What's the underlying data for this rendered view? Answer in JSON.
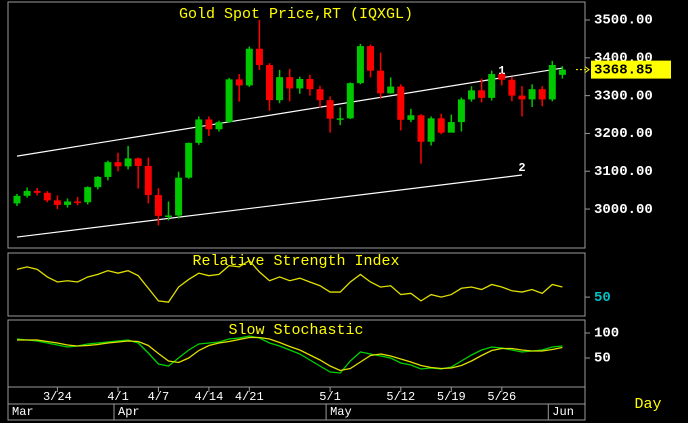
{
  "chart_data": [
    {
      "type": "candlestick",
      "title": "Gold Spot Price,RT (IQXGL)",
      "period": "Day",
      "x": [
        "3/18",
        "3/19",
        "3/20",
        "3/21",
        "3/24",
        "3/25",
        "3/26",
        "3/27",
        "3/28",
        "3/31",
        "4/1",
        "4/2",
        "4/3",
        "4/4",
        "4/7",
        "4/8",
        "4/9",
        "4/10",
        "4/11",
        "4/14",
        "4/15",
        "4/16",
        "4/17",
        "4/21",
        "4/22",
        "4/23",
        "4/24",
        "4/25",
        "4/28",
        "4/29",
        "4/30",
        "5/1",
        "5/2",
        "5/5",
        "5/6",
        "5/7",
        "5/8",
        "5/9",
        "5/12",
        "5/13",
        "5/14",
        "5/15",
        "5/16",
        "5/19",
        "5/20",
        "5/21",
        "5/22",
        "5/23",
        "5/26",
        "5/27",
        "5/28",
        "5/29",
        "5/30",
        "6/2",
        "6/3"
      ],
      "open": [
        3015,
        3035,
        3048,
        3043,
        3023,
        3011,
        3020,
        3018,
        3058,
        3085,
        3124,
        3113,
        3134,
        3114,
        3037,
        2982,
        2983,
        3083,
        3175,
        3237,
        3211,
        3230,
        3343,
        3327,
        3424,
        3381,
        3288,
        3349,
        3319,
        3344,
        3317,
        3288,
        3239,
        3240,
        3333,
        3431,
        3366,
        3306,
        3324,
        3236,
        3248,
        3178,
        3240,
        3202,
        3230,
        3290,
        3314,
        3294,
        3357,
        3342,
        3300,
        3290,
        3317,
        3290,
        3355
      ],
      "high": [
        3040,
        3057,
        3056,
        3047,
        3036,
        3028,
        3032,
        3060,
        3087,
        3128,
        3149,
        3167,
        3136,
        3136,
        3055,
        3020,
        3099,
        3176,
        3245,
        3245,
        3234,
        3347,
        3357,
        3430,
        3500,
        3386,
        3368,
        3371,
        3350,
        3355,
        3326,
        3298,
        3269,
        3335,
        3437,
        3435,
        3414,
        3348,
        3330,
        3265,
        3251,
        3245,
        3252,
        3250,
        3295,
        3325,
        3345,
        3366,
        3360,
        3350,
        3325,
        3330,
        3325,
        3392,
        3378
      ],
      "low": [
        3008,
        3030,
        3036,
        3018,
        3000,
        3004,
        3010,
        3012,
        3052,
        3076,
        3100,
        3105,
        3054,
        3015,
        2957,
        2970,
        2975,
        3080,
        3170,
        3193,
        3205,
        3228,
        3284,
        3323,
        3368,
        3260,
        3280,
        3285,
        3305,
        3300,
        3268,
        3202,
        3222,
        3238,
        3330,
        3348,
        3292,
        3305,
        3208,
        3230,
        3120,
        3168,
        3198,
        3205,
        3205,
        3284,
        3282,
        3287,
        3327,
        3285,
        3245,
        3270,
        3272,
        3285,
        3345
      ],
      "close": [
        3035,
        3048,
        3043,
        3023,
        3011,
        3020,
        3018,
        3058,
        3085,
        3124,
        3113,
        3134,
        3114,
        3037,
        2982,
        2983,
        3083,
        3175,
        3237,
        3211,
        3230,
        3343,
        3327,
        3424,
        3381,
        3288,
        3349,
        3319,
        3344,
        3317,
        3288,
        3239,
        3240,
        3333,
        3431,
        3366,
        3306,
        3324,
        3236,
        3248,
        3178,
        3240,
        3202,
        3230,
        3290,
        3314,
        3294,
        3357,
        3342,
        3300,
        3290,
        3317,
        3290,
        3381,
        3368.85
      ],
      "up_color": "#00c800",
      "down_color": "#ff0000",
      "ylim": [
        2897,
        3545
      ],
      "yticks": [
        {
          "value": 3000,
          "label": "3000.00"
        },
        {
          "value": 3100,
          "label": "3100.00"
        },
        {
          "value": 3200,
          "label": "3200.00"
        },
        {
          "value": 3300,
          "label": "3300.00"
        },
        {
          "value": 3400,
          "label": "3400.00"
        },
        {
          "value": 3500,
          "label": "3500.00"
        }
      ],
      "xticks": [
        "3/24",
        "4/1",
        "4/7",
        "4/14",
        "4/21",
        "5/1",
        "5/12",
        "5/19",
        "5/26"
      ],
      "month_ticks": [
        {
          "value": "3/18",
          "label": "Mar"
        },
        {
          "value": "4/1",
          "label": "Apr"
        },
        {
          "value": "5/1",
          "label": "May"
        },
        {
          "value": "6/2",
          "label": "Jun"
        }
      ],
      "trendlines": [
        {
          "label": "1",
          "x": [
            "3/18",
            "6/3"
          ],
          "y": [
            3140,
            3373
          ],
          "label_x": "5/26",
          "color": "#ffffff"
        },
        {
          "label": "2",
          "x": [
            "3/18",
            "5/28"
          ],
          "y": [
            2926,
            3090
          ],
          "label_x": "5/28",
          "color": "#ffffff"
        }
      ]
    },
    {
      "type": "line",
      "title": "Relative Strength Index",
      "series": [
        {
          "color": "#e0e000",
          "values": [
            72,
            74,
            72,
            66,
            62,
            63,
            62,
            66,
            68,
            71,
            69,
            71,
            67,
            57,
            47,
            46,
            58,
            64,
            69,
            67,
            68,
            75,
            74,
            79,
            70,
            63,
            66,
            63,
            65,
            62,
            59,
            54,
            54,
            62,
            68,
            62,
            58,
            59,
            52,
            53,
            47,
            52,
            50,
            52,
            57,
            58,
            56,
            60,
            58,
            55,
            54,
            56,
            53,
            60,
            58
          ]
        }
      ],
      "ylim": [
        35,
        85
      ],
      "yticks": [
        50
      ],
      "tick_color": "#00c0c0"
    },
    {
      "type": "line",
      "title": "Slow Stochastic",
      "series": [
        {
          "color": "#00d000",
          "values": [
            88,
            86,
            84,
            80,
            76,
            72,
            74,
            78,
            80,
            82,
            84,
            86,
            80,
            60,
            38,
            34,
            50,
            66,
            78,
            80,
            82,
            88,
            90,
            94,
            90,
            80,
            74,
            66,
            58,
            46,
            34,
            22,
            20,
            44,
            62,
            58,
            54,
            50,
            40,
            36,
            28,
            30,
            28,
            32,
            44,
            56,
            66,
            72,
            70,
            66,
            62,
            64,
            66,
            72,
            74
          ]
        },
        {
          "color": "#e0e000",
          "values": [
            86,
            86,
            86,
            83,
            80,
            76,
            74,
            75,
            77,
            80,
            82,
            84,
            83,
            75,
            59,
            44,
            41,
            50,
            65,
            75,
            80,
            83,
            87,
            91,
            91,
            88,
            81,
            73,
            66,
            56,
            46,
            34,
            25,
            29,
            42,
            55,
            58,
            54,
            48,
            42,
            35,
            31,
            29,
            30,
            35,
            44,
            55,
            65,
            69,
            69,
            66,
            64,
            64,
            67,
            71
          ]
        }
      ],
      "ylim": [
        -8,
        126
      ],
      "yticks": [
        50,
        100
      ],
      "tick_color": "#ffffff"
    }
  ]
}
